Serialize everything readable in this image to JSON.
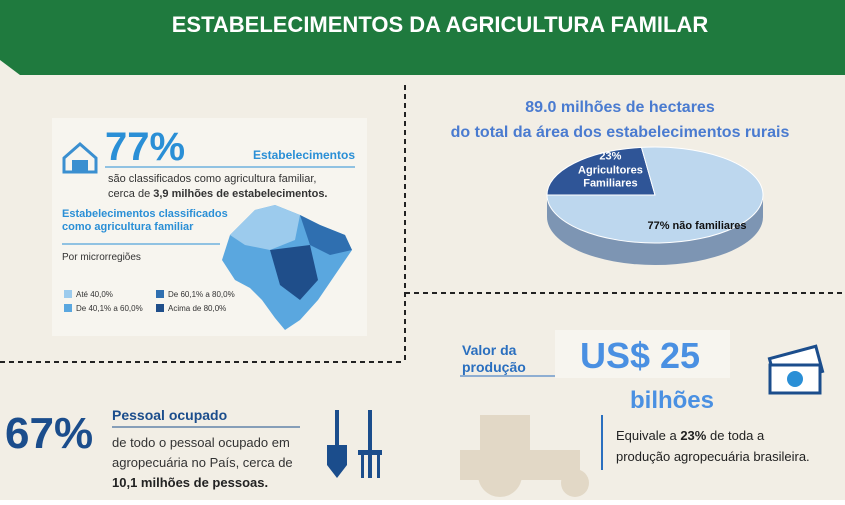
{
  "header": {
    "title": "ESTABELECIMENTOS DA AGRICULTURA FAMILAR"
  },
  "establishments": {
    "percent": "77%",
    "label": "Estabelecimentos",
    "line1": "são classificados como agricultura familiar,",
    "line2_pre": "cerca de ",
    "line2_bold": "3,9 milhões de estabelecimentos.",
    "map_title": "Estabelecimentos classificados como agricultura familiar",
    "map_subtitle": "Por microrregiões",
    "legend": [
      "Até 40,0%",
      "De 40,1% a 60,0%",
      "De 60,1% a 80,0%",
      "Acima de 80,0%"
    ]
  },
  "area": {
    "line1": "89.0 milhões de hectares",
    "line2": "do total da área dos estabelecimentos rurais",
    "pie": {
      "values": [
        23,
        77
      ],
      "value_labels": [
        "23%",
        "77%"
      ],
      "labels": [
        "Agricultores Familiares",
        "não familiares"
      ],
      "colors": [
        "#2f5597",
        "#bdd7ee"
      ]
    }
  },
  "workers": {
    "percent": "67%",
    "label": "Pessoal ocupado",
    "line1": "de todo o pessoal ocupado em",
    "line2": "agropecuária no País, cerca de",
    "line3_bold": "10,1 milhões de pessoas."
  },
  "production": {
    "label": "Valor da produção",
    "value": "US$ 25",
    "unit": "bilhões",
    "line1_pre": "Equivale a ",
    "line1_bold": "23%",
    "line1_post": " de toda a",
    "line2": "produção agropecuária brasileira."
  }
}
